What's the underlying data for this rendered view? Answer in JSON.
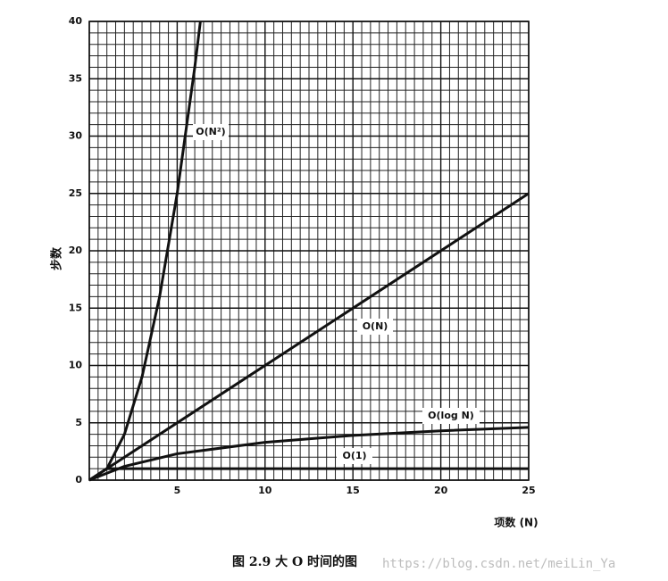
{
  "chart_data": {
    "type": "line",
    "title": "图 2.9   大 O 时间的图",
    "x_label": "项数 (N)",
    "y_label": "步数",
    "watermark": "https://blog.csdn.net/meiLin_Ya",
    "xlim": [
      0,
      25
    ],
    "ylim": [
      0,
      40
    ],
    "xticks": [
      0,
      5,
      10,
      15,
      20,
      25
    ],
    "yticks": [
      0,
      5,
      10,
      15,
      20,
      25,
      30,
      35,
      40
    ],
    "grid": true,
    "series": [
      {
        "name": "O(N²)",
        "color": "#111111",
        "x": [
          0,
          1,
          2,
          3,
          4,
          5,
          6,
          6.32
        ],
        "values": [
          0,
          1,
          4,
          9,
          16,
          25,
          36,
          40
        ]
      },
      {
        "name": "O(N)",
        "color": "#111111",
        "x": [
          0,
          25
        ],
        "values": [
          0,
          25
        ]
      },
      {
        "name": "O(log N)",
        "color": "#111111",
        "x": [
          0,
          1,
          2,
          5,
          10,
          15,
          20,
          25
        ],
        "values": [
          0,
          0.6,
          1.2,
          2.3,
          3.3,
          3.9,
          4.3,
          4.6
        ]
      },
      {
        "name": "O(1)",
        "color": "#111111",
        "x": [
          0,
          1,
          25
        ],
        "values": [
          0,
          1,
          1
        ]
      }
    ]
  }
}
